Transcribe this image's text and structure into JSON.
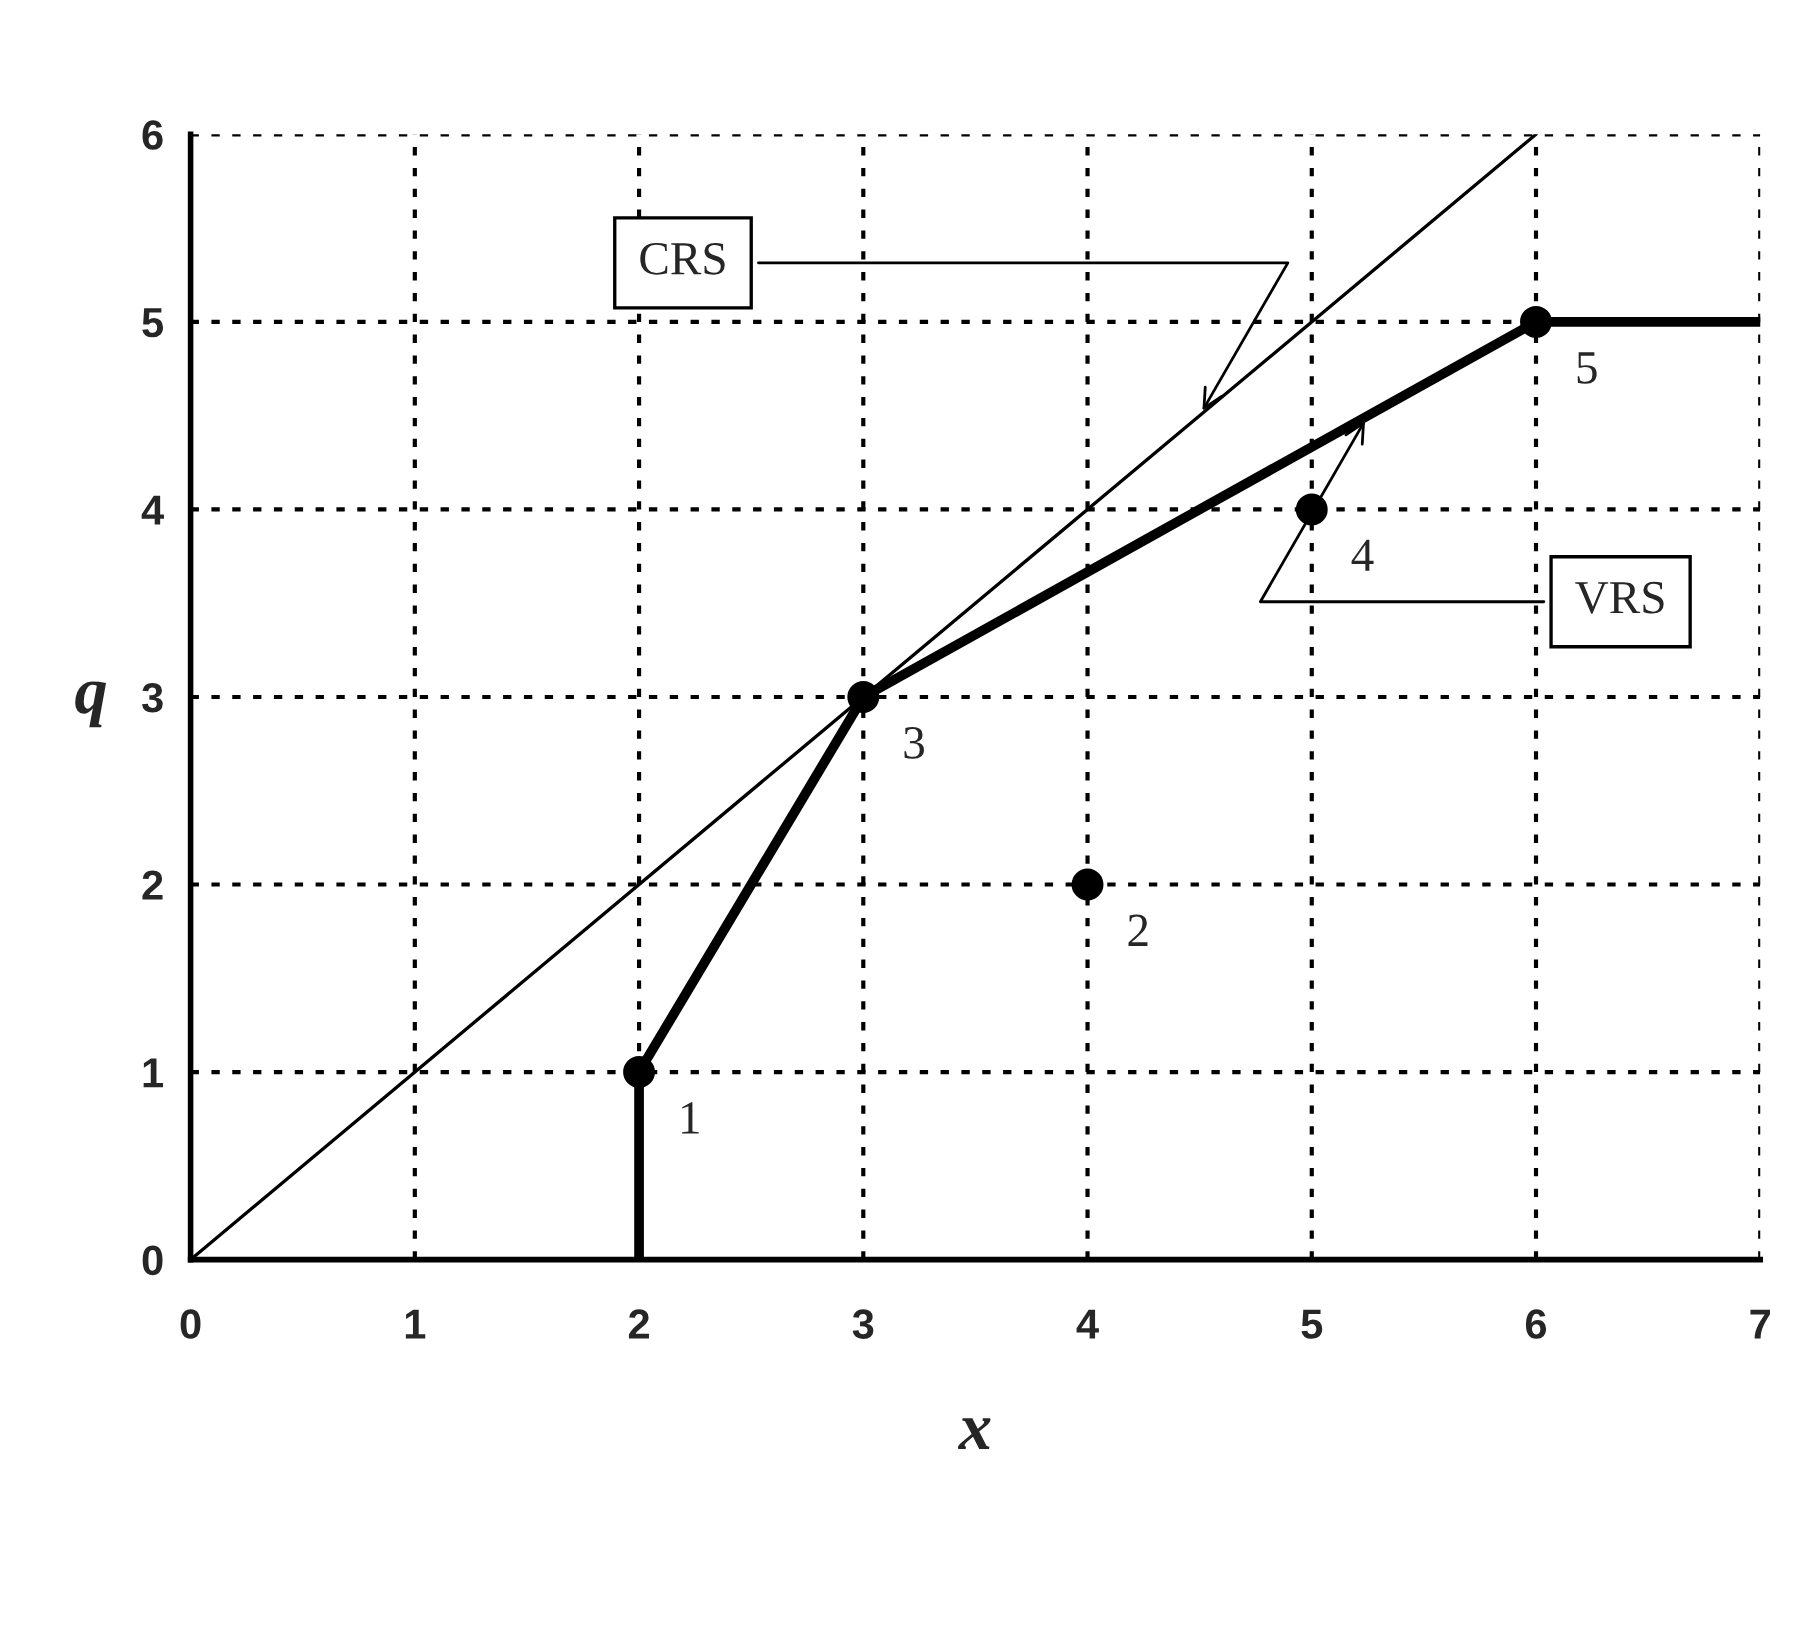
{
  "chart_data": {
    "type": "scatter",
    "xlabel": "x",
    "ylabel": "q",
    "xlim": [
      0,
      7
    ],
    "ylim": [
      0,
      6
    ],
    "xticks": [
      0,
      1,
      2,
      3,
      4,
      5,
      6,
      7
    ],
    "yticks": [
      0,
      1,
      2,
      3,
      4,
      5,
      6
    ],
    "grid": true,
    "legend": false,
    "series": [
      {
        "color": "#000000",
        "marker": "circle",
        "x": [
          2,
          4,
          3,
          5,
          6
        ],
        "values": [
          1,
          2,
          3,
          4,
          5
        ]
      },
      {
        "type": "line",
        "color": "#000000",
        "line_style": "solid",
        "marker": "none",
        "x": [
          0,
          6
        ],
        "values": [
          0,
          6
        ]
      },
      {
        "type": "line",
        "color": "#000000",
        "line_style": "solid",
        "marker": "none",
        "x": [
          2,
          2,
          3,
          6,
          7
        ],
        "values": [
          0,
          1,
          3,
          5,
          5
        ]
      }
    ],
    "annotations": [
      {
        "text": "CRS",
        "x": 4.5,
        "y": 4.5
      },
      {
        "text": "VRS",
        "x": 5.25,
        "y": 4.5
      },
      {
        "text": "1",
        "x": 2,
        "y": 1
      },
      {
        "text": "2",
        "x": 4,
        "y": 2
      },
      {
        "text": "3",
        "x": 3,
        "y": 3
      },
      {
        "text": "4",
        "x": 5,
        "y": 4
      },
      {
        "text": "5",
        "x": 6,
        "y": 5
      }
    ]
  }
}
